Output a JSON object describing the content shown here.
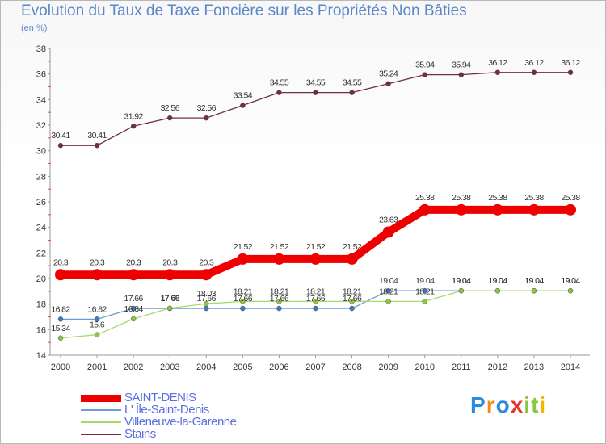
{
  "header": {
    "title": "Evolution du Taux de Taxe Foncière sur les Propriétés Non Bâties",
    "unit": "(en %)"
  },
  "brand": {
    "letters": [
      "P",
      "r",
      "o",
      "x",
      "i",
      "t",
      "i"
    ],
    "colors": [
      "#2e8bd9",
      "#f08a1c",
      "#2e8bd9",
      "#e3342f",
      "#8cc63f",
      "#8cc63f",
      "#f4b400"
    ]
  },
  "chart_data": {
    "type": "line",
    "title": "Evolution du Taux de Taxe Foncière sur les Propriétés Non Bâties",
    "ylabel": "(en %)",
    "xlabel": "",
    "x": [
      "2000",
      "2001",
      "2002",
      "2003",
      "2004",
      "2005",
      "2006",
      "2007",
      "2008",
      "2009",
      "2010",
      "2011",
      "2012",
      "2013",
      "2014"
    ],
    "ylim": [
      14,
      38
    ],
    "yticks": [
      14,
      16,
      18,
      20,
      22,
      24,
      26,
      28,
      30,
      32,
      34,
      36,
      38
    ],
    "grid": false,
    "legend_position": "bottom-left",
    "series": [
      {
        "name": "Stains",
        "color": "#722f37",
        "marker": "#722f37",
        "width": 1.3,
        "radius": 3,
        "values": [
          30.41,
          30.41,
          31.92,
          32.56,
          32.56,
          33.54,
          34.55,
          34.55,
          34.55,
          35.24,
          35.94,
          35.94,
          36.12,
          36.12,
          36.12
        ],
        "labels": [
          "30.41",
          "30.41",
          "31.92",
          "32.56",
          "32.56",
          "33.54",
          "34.55",
          "34.55",
          "34.55",
          "35.24",
          "35.94",
          "35.94",
          "36.12",
          "36.12",
          "36.12"
        ]
      },
      {
        "name": "L' Île-Saint-Denis",
        "color": "#6b9bd8",
        "marker": "#3f78c4",
        "width": 1.3,
        "radius": 3,
        "values": [
          16.82,
          16.82,
          17.66,
          17.66,
          17.66,
          17.66,
          17.66,
          17.66,
          17.66,
          19.04,
          19.04,
          19.04,
          19.04,
          19.04,
          19.04
        ],
        "labels": [
          "16.82",
          "16.82",
          "17.66",
          "17.66",
          "17.66",
          "17.66",
          "17.66",
          "17.66",
          "17.66",
          "19.04",
          "19.04",
          "19.04",
          "19.04",
          "19.04",
          "19.04"
        ]
      },
      {
        "name": "Villeneuve-la-Garenne",
        "color": "#a6d96a",
        "marker": "#8cc63f",
        "width": 1.3,
        "radius": 3,
        "values": [
          15.34,
          15.6,
          16.84,
          17.68,
          18.03,
          18.21,
          18.21,
          18.21,
          18.21,
          18.21,
          18.21,
          19.04,
          19.04,
          19.04,
          19.04
        ],
        "labels": [
          "15.34",
          "15.6",
          "16.84",
          "17.68",
          "18.03",
          "18.21",
          "18.21",
          "18.21",
          "18.21",
          "18.21",
          "18.21",
          "19.04",
          "19.04",
          "19.04",
          "19.04"
        ]
      },
      {
        "name": "SAINT-DENIS",
        "color": "#ee0000",
        "marker": "#ee0000",
        "width": 10,
        "radius": 7,
        "values": [
          20.3,
          20.3,
          20.3,
          20.3,
          20.3,
          21.52,
          21.52,
          21.52,
          21.52,
          23.63,
          25.38,
          25.38,
          25.38,
          25.38,
          25.38
        ],
        "labels": [
          "20.3",
          "20.3",
          "20.3",
          "20.3",
          "20.3",
          "21.52",
          "21.52",
          "21.52",
          "21.52",
          "23.63",
          "25.38",
          "25.38",
          "25.38",
          "25.38",
          "25.38"
        ]
      }
    ],
    "legend": [
      {
        "name": "SAINT-DENIS",
        "color": "#ee0000",
        "weight": 9
      },
      {
        "name": "L' Île-Saint-Denis",
        "color": "#6b9bd8",
        "weight": 2
      },
      {
        "name": "Villeneuve-la-Garenne",
        "color": "#a6d96a",
        "weight": 2
      },
      {
        "name": "Stains",
        "color": "#722f37",
        "weight": 2
      }
    ]
  }
}
